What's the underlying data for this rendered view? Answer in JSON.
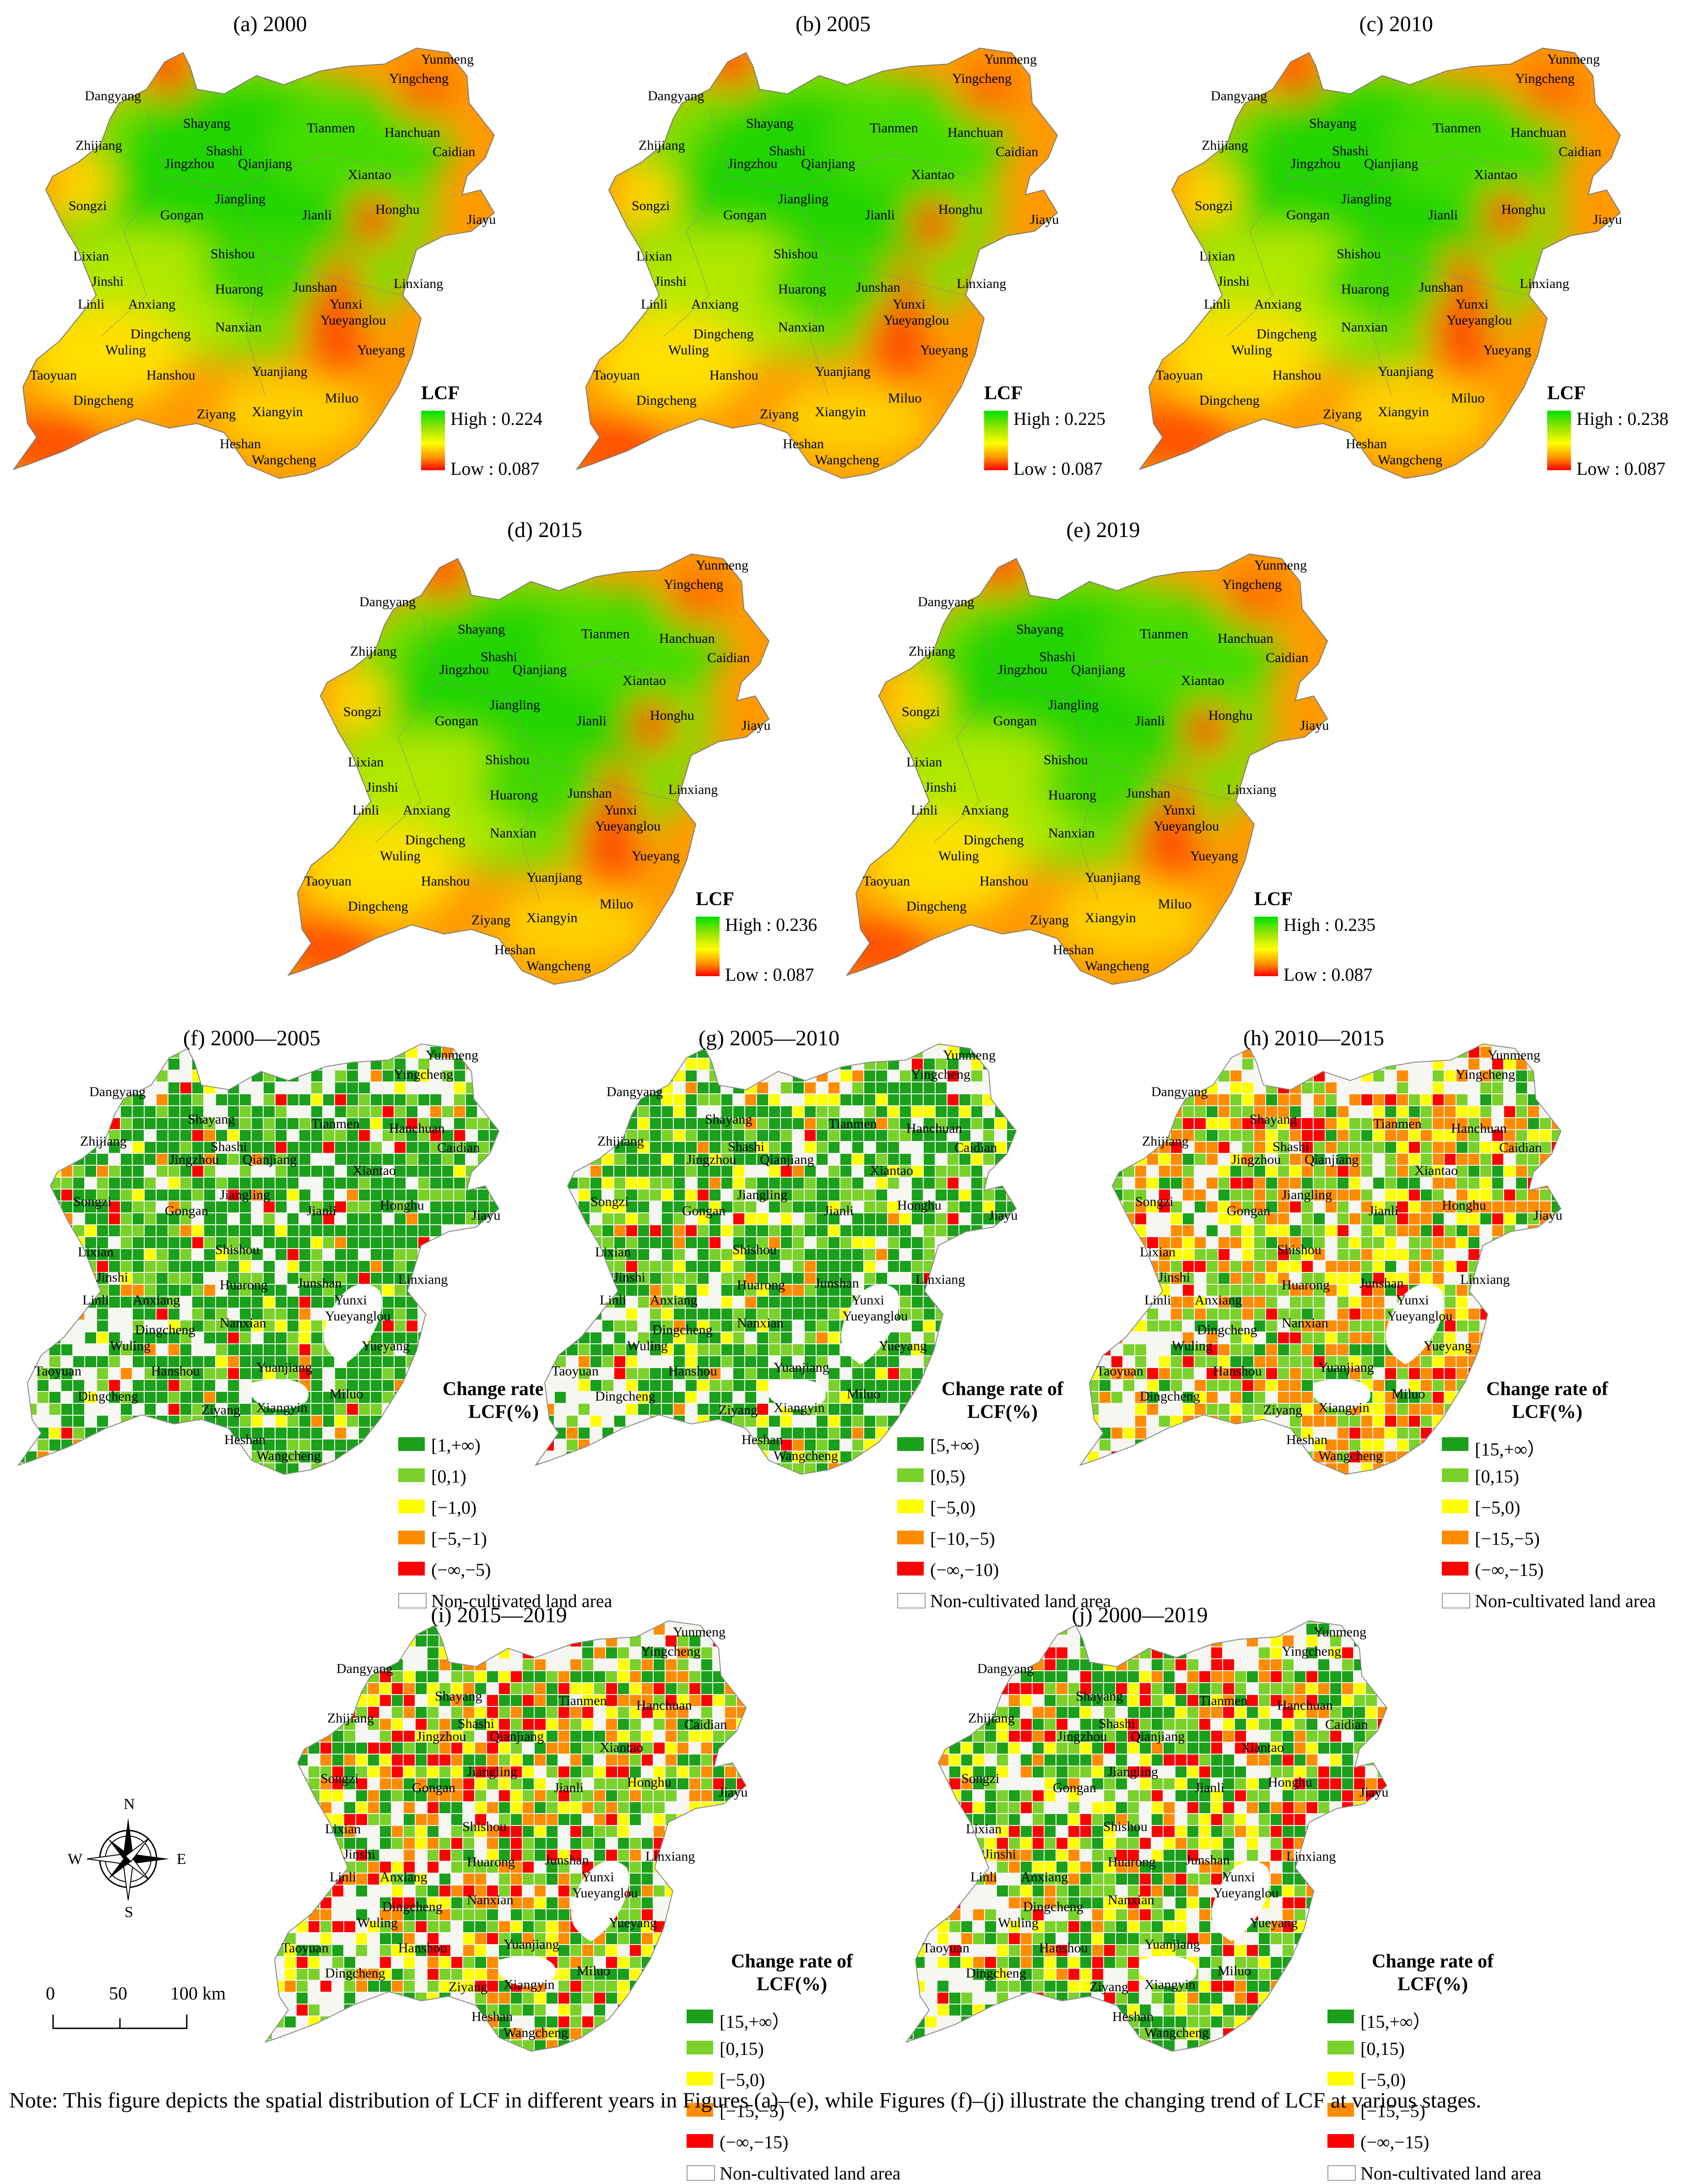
{
  "place_names": {
    "dangyang": "Dangyang",
    "yunmeng": "Yunmeng",
    "yingcheng": "Yingcheng",
    "shayang": "Shayang",
    "tianmen": "Tianmen",
    "hanchuan": "Hanchuan",
    "caidian": "Caidian",
    "zhijiang": "Zhijiang",
    "shashi": "Shashi",
    "jingzhou": "Jingzhou",
    "qianjiang": "Qianjiang",
    "xiantao": "Xiantao",
    "songzi": "Songzi",
    "jiangling": "Jiangling",
    "gongan": "Gongan",
    "jianli": "Jianli",
    "honghu": "Honghu",
    "jiayu": "Jiayu",
    "lixian": "Lixian",
    "shishou": "Shishou",
    "jinshi": "Jinshi",
    "junshan": "Junshan",
    "linxiang": "Linxiang",
    "huarong": "Huarong",
    "yunxi": "Yunxi",
    "linli": "Linli",
    "anxiang": "Anxiang",
    "yueyanglou": "Yueyanglou",
    "dingcheng": "Dingcheng",
    "nanxian": "Nanxian",
    "wuling": "Wuling",
    "yueyang": "Yueyang",
    "taoyuan": "Taoyuan",
    "hanshou": "Hanshou",
    "yuanjiang": "Yuanjiang",
    "miluo": "Miluo",
    "xiangyin": "Xiangyin",
    "ziyang": "Ziyang",
    "heshan": "Heshan",
    "wangcheng": "Wangcheng"
  },
  "lcf_panels": [
    {
      "title": "(a) 2000",
      "legend_title": "LCF",
      "high": "High : 0.224",
      "low": "Low : 0.087",
      "colors": {
        "high": "#00e000",
        "low": "#ff0000"
      }
    },
    {
      "title": "(b) 2005",
      "legend_title": "LCF",
      "high": "High : 0.225",
      "low": "Low : 0.087",
      "colors": {
        "high": "#00e000",
        "low": "#ff0000"
      }
    },
    {
      "title": "(c) 2010",
      "legend_title": "LCF",
      "high": "High : 0.238",
      "low": "Low : 0.087",
      "colors": {
        "high": "#00e000",
        "low": "#ff0000"
      }
    },
    {
      "title": "(d) 2015",
      "legend_title": "LCF",
      "high": "High : 0.236",
      "low": "Low : 0.087",
      "colors": {
        "high": "#00e000",
        "low": "#ff0000"
      }
    },
    {
      "title": "(e) 2019",
      "legend_title": "LCF",
      "high": "High : 0.235",
      "low": "Low : 0.087",
      "colors": {
        "high": "#00e000",
        "low": "#ff0000"
      }
    }
  ],
  "change_panels": [
    {
      "title": "(f) 2000—2005",
      "legend_title_1": "Change rate of",
      "legend_title_2": "LCF(%)",
      "classes": [
        "[1,+∞)",
        "[0,1)",
        "[−1,0)",
        "[−5,−1)",
        "(−∞,−5)",
        "Non-cultivated land area"
      ]
    },
    {
      "title": "(g) 2005—2010",
      "legend_title_1": "Change rate of",
      "legend_title_2": "LCF(%)",
      "classes": [
        "[5,+∞)",
        "[0,5)",
        "[−5,0)",
        "[−10,−5)",
        "(−∞,−10)",
        "Non-cultivated land area"
      ]
    },
    {
      "title": "(h) 2010—2015",
      "legend_title_1": "Change rate of",
      "legend_title_2": "LCF(%)",
      "classes": [
        "[15,+∞）",
        "[0,15)",
        "[−5,0)",
        "[−15,−5)",
        "(−∞,−15)",
        "Non-cultivated land area"
      ]
    },
    {
      "title": "(i) 2015—2019",
      "legend_title_1": "Change rate of",
      "legend_title_2": "LCF(%)",
      "classes": [
        "[15,+∞）",
        "[0,15)",
        "[−5,0)",
        "[−15,−5)",
        "(−∞,−15)",
        "Non-cultivated land area"
      ]
    },
    {
      "title": "(j) 2000—2019",
      "legend_title_1": "Change rate of",
      "legend_title_2": "LCF(%)",
      "classes": [
        "[15,+∞）",
        "[0,15)",
        "[−5,0)",
        "[−15,−5)",
        "(−∞,−15)",
        "Non-cultivated land area"
      ]
    }
  ],
  "change_class_colors": [
    "#1aa01a",
    "#7ad12a",
    "#ffff00",
    "#ff8c00",
    "#ff0000",
    "#ffffff"
  ],
  "compass": {
    "n": "N",
    "s": "S",
    "e": "E",
    "w": "W"
  },
  "scale": {
    "zero": "0",
    "mid": "50",
    "end": "100 km"
  },
  "note": "Note: This figure depicts the spatial distribution of LCF in different years in Figures (a)–(e), while Figures (f)–(j) illustrate the changing trend of LCF at various stages."
}
